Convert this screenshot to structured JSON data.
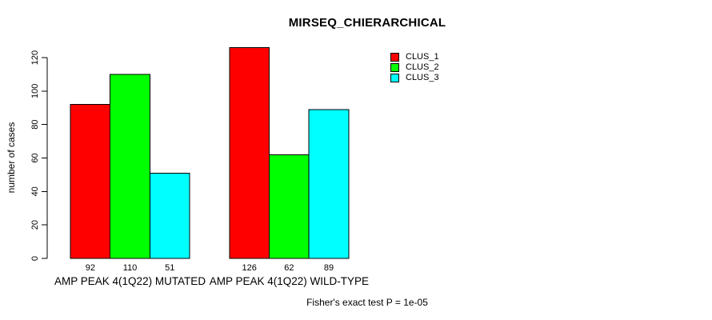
{
  "chart_data": {
    "type": "bar",
    "title": "MIRSEQ_CHIERARCHICAL",
    "ylabel": "number of cases",
    "xlabel": "",
    "categories": [
      "AMP PEAK 4(1Q22) MUTATED",
      "AMP PEAK 4(1Q22) WILD-TYPE"
    ],
    "series": [
      {
        "name": "CLUS_1",
        "color": "#ff0000",
        "values": [
          92,
          126
        ]
      },
      {
        "name": "CLUS_2",
        "color": "#00ff00",
        "values": [
          110,
          62
        ]
      },
      {
        "name": "CLUS_3",
        "color": "#00ffff",
        "values": [
          51,
          89
        ]
      }
    ],
    "y_ticks": [
      0,
      20,
      40,
      60,
      80,
      100,
      120
    ],
    "ylim": [
      0,
      126
    ],
    "grid": false,
    "bar_value_labels_shown": true,
    "legend_position": "topright",
    "annotation": "Fisher's exact test P = 1e-05",
    "colors": {
      "background": "#ffffff",
      "axis": "#000000",
      "text": "#000000",
      "bar_border": "#000000"
    }
  }
}
